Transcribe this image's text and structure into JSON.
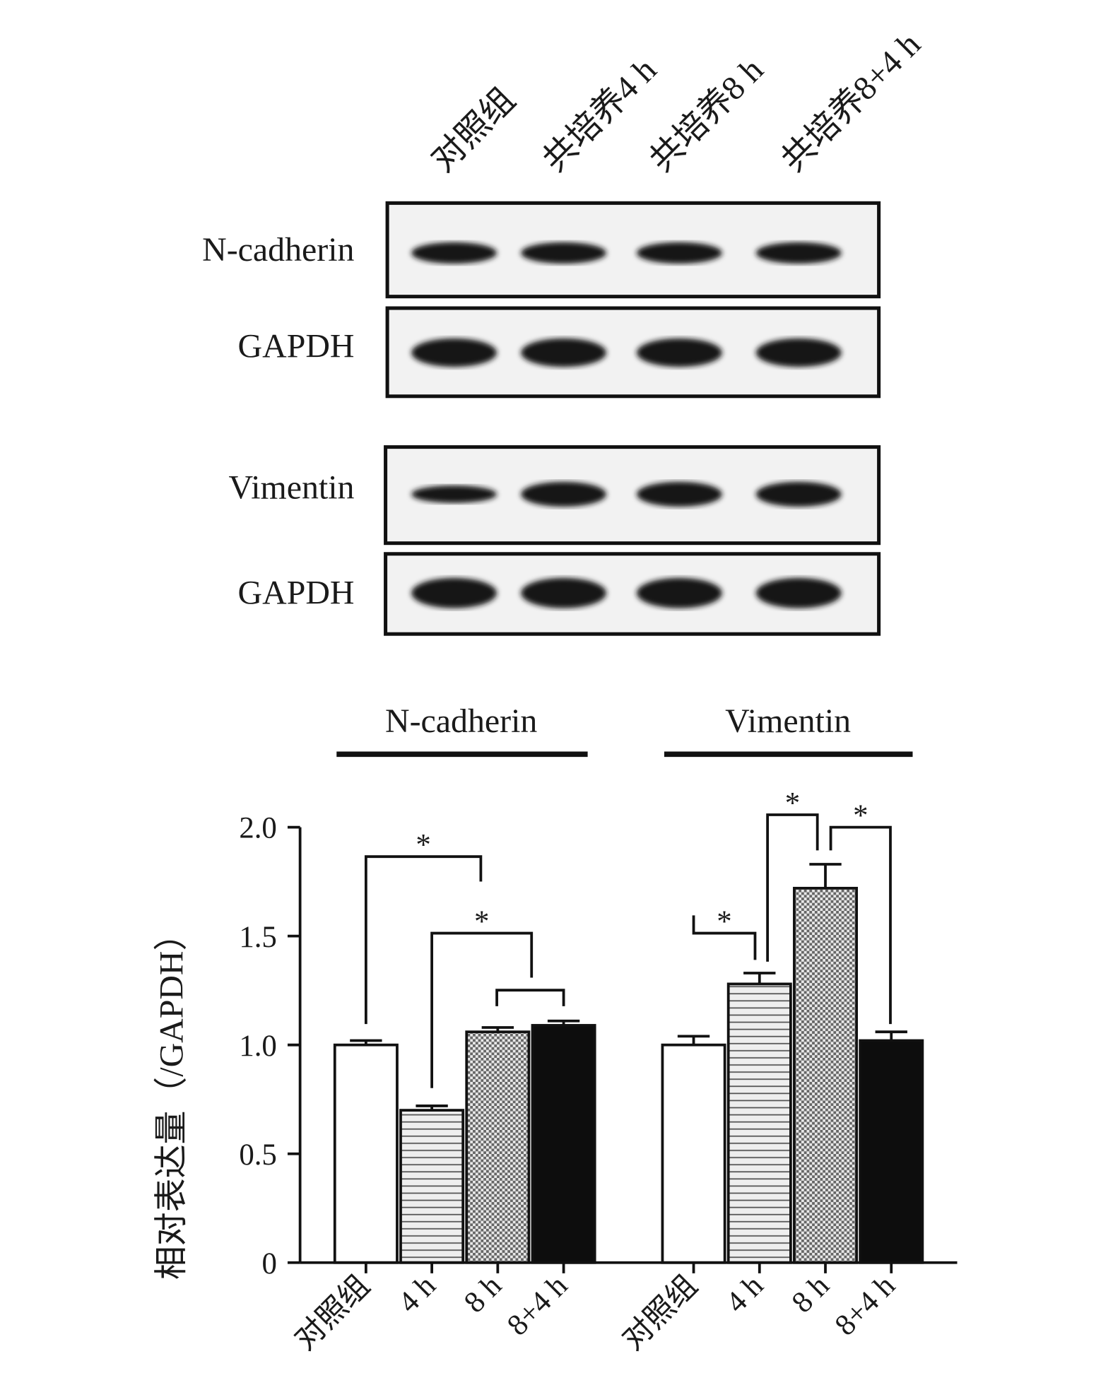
{
  "blot": {
    "lanes": [
      "对照组",
      "共培养4 h",
      "共培养8 h",
      "共培养8+4 h"
    ],
    "rows": [
      "N-cadherin",
      "GAPDH",
      "Vimentin",
      "GAPDH"
    ]
  },
  "chart_data": {
    "type": "bar",
    "categories": [
      "N-cadherin",
      "Vimentin"
    ],
    "ylabel": "相对表达量（/GAPDH）",
    "series": [
      {
        "name": "对照组",
        "color": "#ffffff",
        "pattern": "solid",
        "values": [
          1.0,
          1.0
        ],
        "errors": [
          0.02,
          0.04
        ]
      },
      {
        "name": "4 h",
        "color": "#d6d6d6",
        "pattern": "horizontal",
        "values": [
          0.7,
          1.28
        ],
        "errors": [
          0.02,
          0.05
        ]
      },
      {
        "name": "8 h",
        "color": "#bdbdbd",
        "pattern": "checker",
        "values": [
          1.06,
          1.72
        ],
        "errors": [
          0.02,
          0.11
        ]
      },
      {
        "name": "8+4 h",
        "color": "#0d0d0d",
        "pattern": "solid",
        "values": [
          1.09,
          1.02
        ],
        "errors": [
          0.02,
          0.04
        ]
      }
    ],
    "ylim": [
      0,
      2
    ],
    "yticks": [
      0,
      0.5,
      {
        "value": 1,
        "label": "1.0"
      },
      1.5,
      {
        "value": 2,
        "label": "2.0"
      }
    ],
    "annotations": [
      "*",
      "*",
      "*",
      "*",
      "*"
    ]
  }
}
